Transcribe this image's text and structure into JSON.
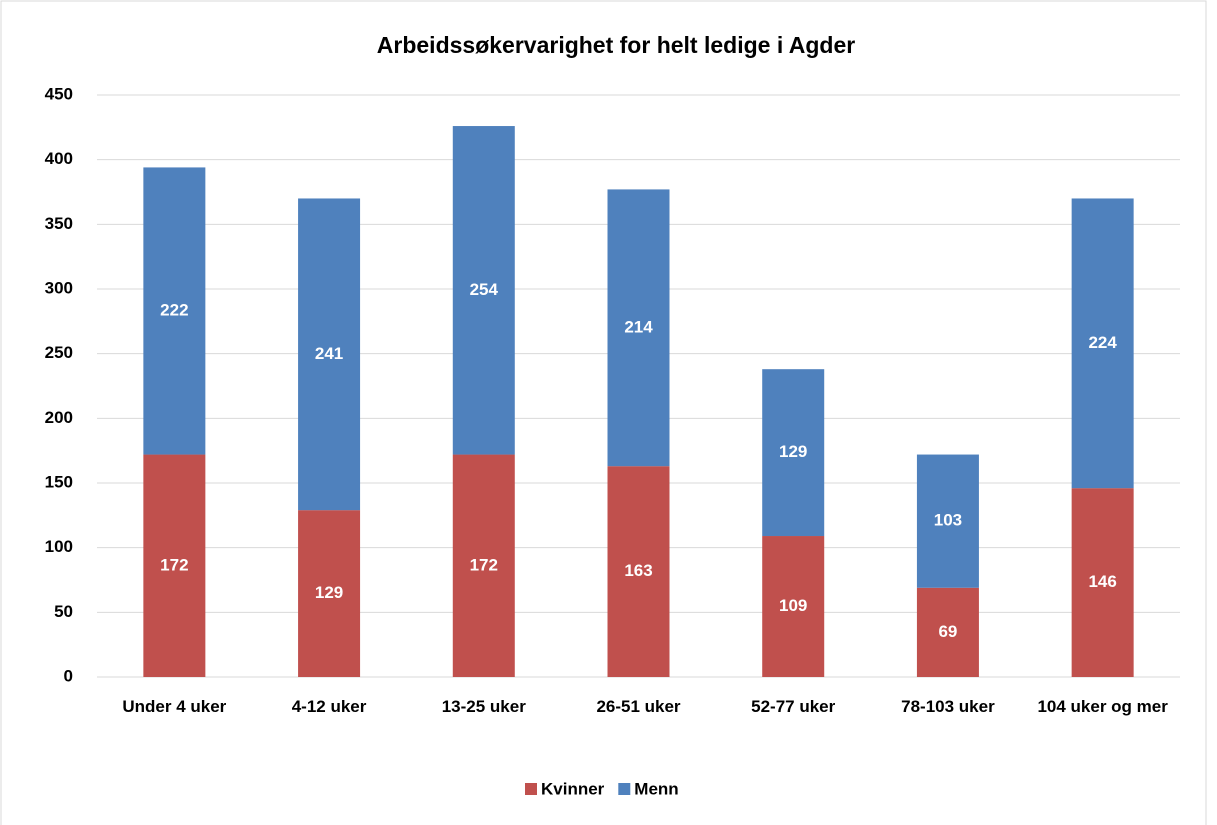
{
  "chart_data": {
    "type": "stacked_bar",
    "title": "Arbeidssøkervarighet for helt ledige i Agder",
    "categories": [
      "Under 4 uker",
      "4-12 uker",
      "13-25 uker",
      "26-51 uker",
      "52-77 uker",
      "78-103 uker",
      "104 uker og mer"
    ],
    "series": [
      {
        "name": "Kvinner",
        "color": "#c0504d",
        "values": [
          172,
          129,
          172,
          163,
          109,
          69,
          146
        ]
      },
      {
        "name": "Menn",
        "color": "#4f81bd",
        "values": [
          222,
          241,
          254,
          214,
          129,
          103,
          224
        ]
      }
    ],
    "ylim": [
      0,
      450
    ],
    "yticks": [
      0,
      50,
      100,
      150,
      200,
      250,
      300,
      350,
      400,
      450
    ],
    "grid": true,
    "legend": "bottom"
  }
}
